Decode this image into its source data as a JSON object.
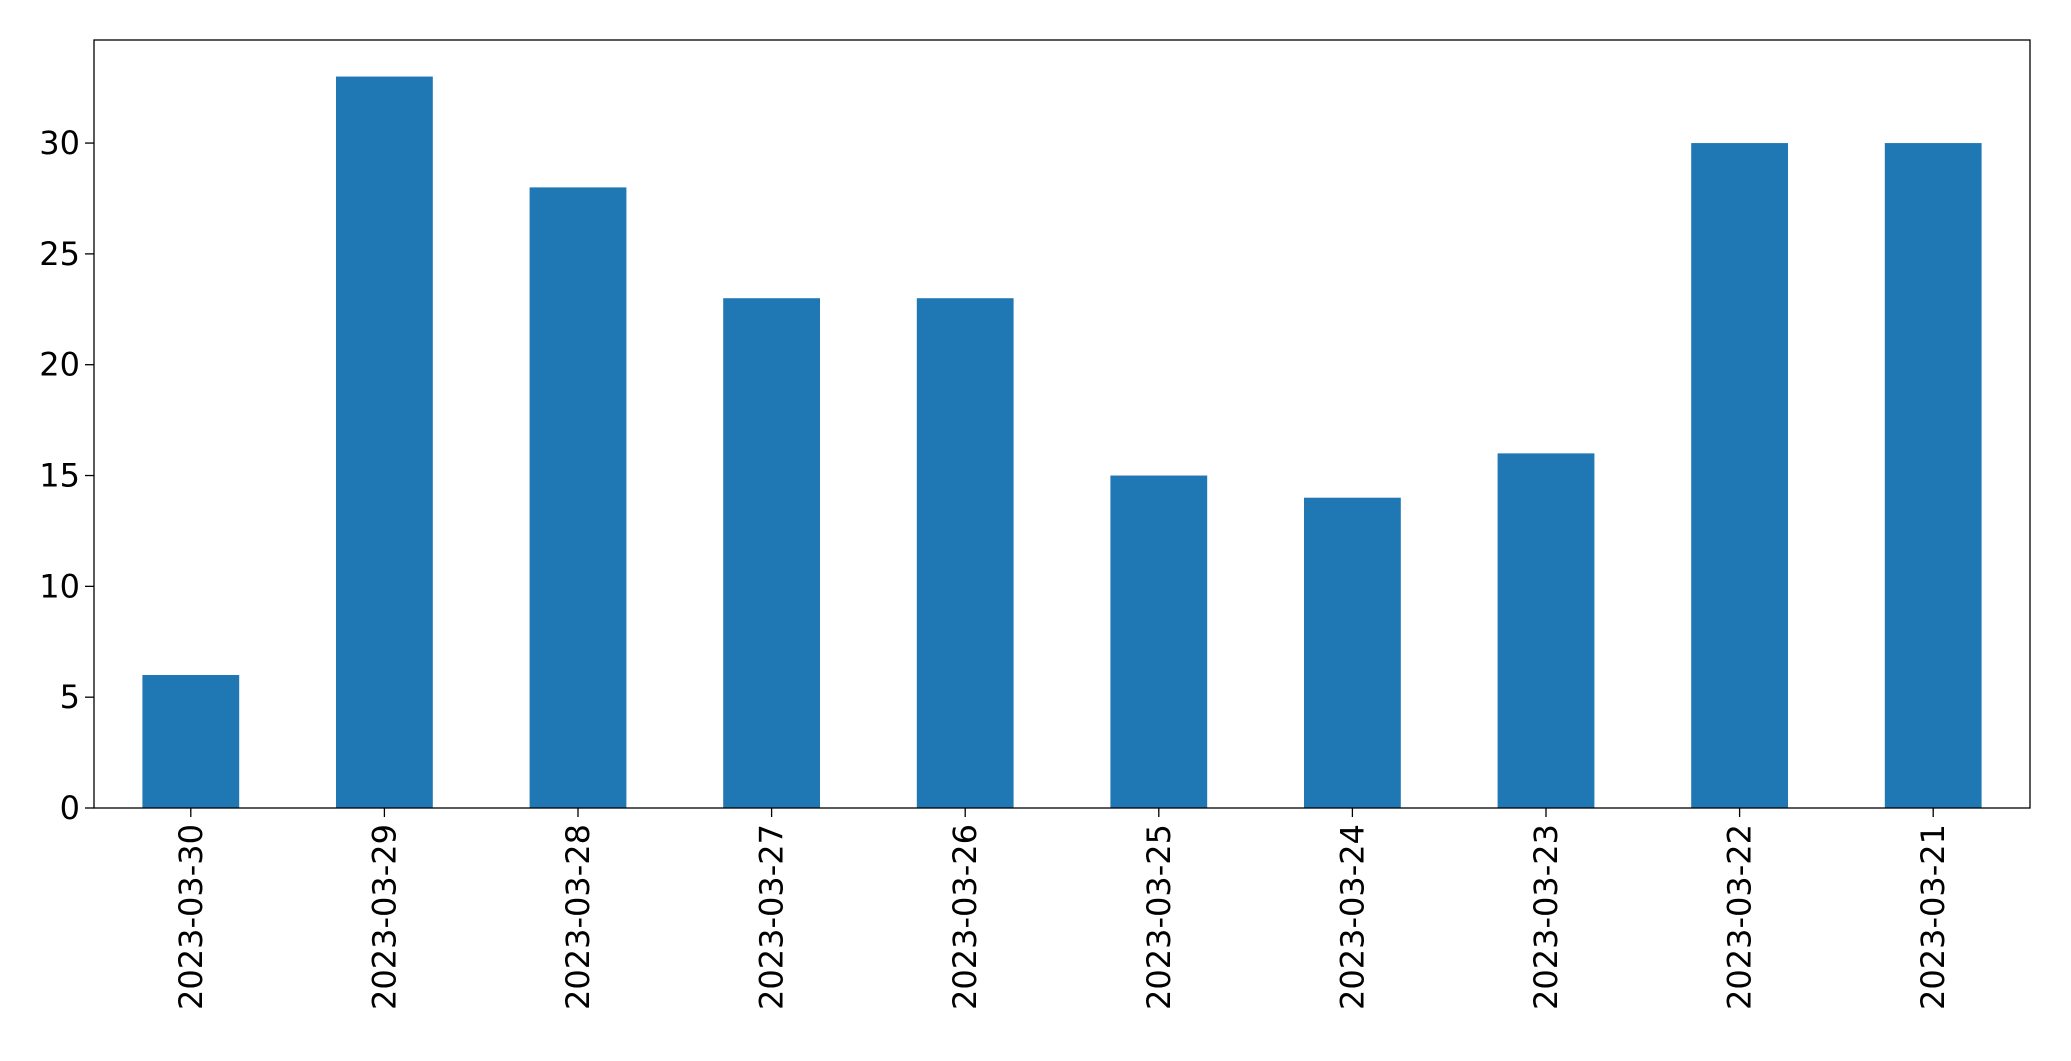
{
  "chart_data": {
    "type": "bar",
    "categories": [
      "2023-03-30",
      "2023-03-29",
      "2023-03-28",
      "2023-03-27",
      "2023-03-26",
      "2023-03-25",
      "2023-03-24",
      "2023-03-23",
      "2023-03-22",
      "2023-03-21"
    ],
    "values": [
      6,
      33,
      28,
      23,
      23,
      15,
      14,
      16,
      30,
      30
    ],
    "color": "#1f77b4",
    "ylim": [
      0,
      34.65
    ],
    "yticks": [
      0,
      5,
      10,
      15,
      20,
      25,
      30
    ],
    "grid": false
  }
}
